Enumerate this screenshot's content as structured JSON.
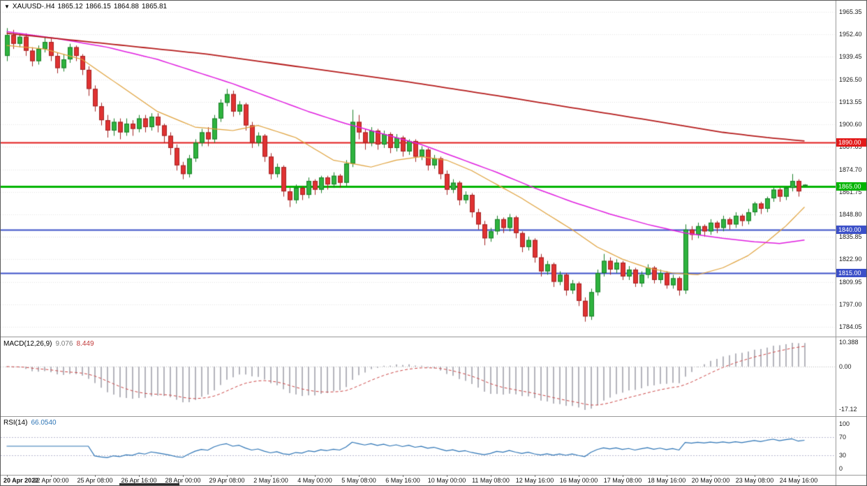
{
  "header": {
    "dropdown": "▼",
    "symbol": "XAUUSD-.H4",
    "open": "1865.12",
    "high": "1866.15",
    "low": "1864.88",
    "close": "1865.81"
  },
  "colors": {
    "background": "#ffffff",
    "grid": "#e3e3e3",
    "panel_border": "#9a9a9a",
    "bull": "#2eb33e",
    "bull_stroke": "#1b7f29",
    "bear": "#e03232",
    "bear_stroke": "#a32424",
    "hline_red": "#e21a1a",
    "hline_green": "#00b400",
    "hline_blue": "#3c50c8",
    "ma_fast": "#e0a23c",
    "ma_mid": "#e01ee0",
    "ma_slow": "#b51c1c",
    "macd_hist": "#b4b4bc",
    "macd_signal": "#cc4444",
    "rsi_line": "#2e75b6",
    "rsi_level": "#b8b8cf"
  },
  "price_axis": {
    "ticks": [
      "1965.35",
      "1952.40",
      "1939.45",
      "1926.50",
      "1913.55",
      "1900.60",
      "1887.65",
      "1874.70",
      "1861.75",
      "1848.80",
      "1835.85",
      "1822.90",
      "1809.95",
      "1797.00",
      "1784.05"
    ],
    "top_value": 1965.35,
    "bottom_value": 1784.05
  },
  "time_axis": {
    "labels": [
      "20 Apr 2022",
      "22 Apr 00:00",
      "25 Apr 08:00",
      "26 Apr 16:00",
      "28 Apr 00:00",
      "29 Apr 08:00",
      "2 May 16:00",
      "4 May 00:00",
      "5 May 08:00",
      "6 May 16:00",
      "10 May 00:00",
      "11 May 08:00",
      "12 May 16:00",
      "16 May 00:00",
      "17 May 08:00",
      "18 May 16:00",
      "20 May 00:00",
      "23 May 08:00",
      "24 May 16:00"
    ],
    "indices": [
      0,
      7,
      14,
      21,
      28,
      35,
      42,
      49,
      56,
      63,
      70,
      77,
      84,
      91,
      98,
      105,
      112,
      119,
      126
    ]
  },
  "chart_data": [
    {
      "type": "candlestick",
      "title": "XAUUSD-.H4",
      "symbol": "XAUUSD-",
      "timeframe": "H4",
      "ylim": [
        1784.05,
        1965.35
      ],
      "hlines": [
        {
          "label": "1890.00",
          "price": 1890.0,
          "color": "#e21a1a",
          "width": 2
        },
        {
          "label": "1865.00",
          "price": 1865.0,
          "color": "#00b400",
          "width": 3
        },
        {
          "label": "1840.00",
          "price": 1840.0,
          "color": "#3c50c8",
          "width": 2
        },
        {
          "label": "1815.00",
          "price": 1815.0,
          "color": "#3c50c8",
          "width": 2
        }
      ],
      "moving_averages": [
        {
          "name": "fast-orange",
          "color": "#e0a23c",
          "width": 1.2,
          "points": [
            [
              0,
              1946
            ],
            [
              6,
              1944
            ],
            [
              12,
              1938
            ],
            [
              18,
              1923
            ],
            [
              24,
              1908
            ],
            [
              30,
              1899
            ],
            [
              36,
              1897
            ],
            [
              40,
              1900
            ],
            [
              46,
              1893
            ],
            [
              52,
              1880
            ],
            [
              58,
              1876
            ],
            [
              62,
              1880
            ],
            [
              66,
              1882
            ],
            [
              70,
              1880
            ],
            [
              74,
              1874
            ],
            [
              78,
              1866
            ],
            [
              82,
              1858
            ],
            [
              86,
              1849
            ],
            [
              90,
              1840
            ],
            [
              94,
              1830
            ],
            [
              98,
              1823
            ],
            [
              102,
              1818
            ],
            [
              106,
              1815
            ],
            [
              110,
              1814
            ],
            [
              114,
              1818
            ],
            [
              118,
              1825
            ],
            [
              121,
              1833
            ],
            [
              124,
              1842
            ],
            [
              127,
              1853
            ]
          ]
        },
        {
          "name": "mid-magenta",
          "color": "#e01ee0",
          "width": 1.5,
          "points": [
            [
              0,
              1954
            ],
            [
              8,
              1950
            ],
            [
              16,
              1945
            ],
            [
              24,
              1938
            ],
            [
              30,
              1931
            ],
            [
              36,
              1924
            ],
            [
              42,
              1916
            ],
            [
              48,
              1908
            ],
            [
              54,
              1901
            ],
            [
              60,
              1895
            ],
            [
              66,
              1889
            ],
            [
              72,
              1881
            ],
            [
              78,
              1873
            ],
            [
              84,
              1864
            ],
            [
              90,
              1856
            ],
            [
              96,
              1849
            ],
            [
              102,
              1843
            ],
            [
              108,
              1838
            ],
            [
              114,
              1835
            ],
            [
              119,
              1833
            ],
            [
              123,
              1832
            ],
            [
              127,
              1834
            ]
          ]
        },
        {
          "name": "slow-darkred",
          "color": "#b51c1c",
          "width": 1.8,
          "points": [
            [
              0,
              1953
            ],
            [
              16,
              1947
            ],
            [
              32,
              1941
            ],
            [
              48,
              1933
            ],
            [
              64,
              1925
            ],
            [
              80,
              1916
            ],
            [
              92,
              1909
            ],
            [
              104,
              1902
            ],
            [
              114,
              1896
            ],
            [
              121,
              1893
            ],
            [
              127,
              1891
            ]
          ]
        }
      ],
      "ohlc": [
        [
          1940,
          1956,
          1937,
          1952
        ],
        [
          1952,
          1955,
          1944,
          1947
        ],
        [
          1947,
          1953,
          1945,
          1951
        ],
        [
          1951,
          1953,
          1940,
          1943
        ],
        [
          1943,
          1945,
          1934,
          1937
        ],
        [
          1937,
          1946,
          1935,
          1944
        ],
        [
          1944,
          1951,
          1942,
          1948
        ],
        [
          1948,
          1950,
          1937,
          1940
        ],
        [
          1940,
          1942,
          1930,
          1933
        ],
        [
          1933,
          1941,
          1931,
          1938
        ],
        [
          1938,
          1947,
          1936,
          1945
        ],
        [
          1945,
          1946,
          1937,
          1940
        ],
        [
          1940,
          1941,
          1929,
          1932
        ],
        [
          1932,
          1934,
          1917,
          1921
        ],
        [
          1921,
          1923,
          1908,
          1911
        ],
        [
          1911,
          1913,
          1900,
          1903
        ],
        [
          1903,
          1906,
          1893,
          1897
        ],
        [
          1897,
          1904,
          1894,
          1902
        ],
        [
          1902,
          1904,
          1892,
          1896
        ],
        [
          1896,
          1904,
          1894,
          1901
        ],
        [
          1901,
          1903,
          1894,
          1898
        ],
        [
          1898,
          1906,
          1896,
          1904
        ],
        [
          1904,
          1906,
          1896,
          1899
        ],
        [
          1899,
          1907,
          1897,
          1905
        ],
        [
          1905,
          1907,
          1896,
          1900
        ],
        [
          1900,
          1901,
          1890,
          1894
        ],
        [
          1894,
          1896,
          1883,
          1887
        ],
        [
          1887,
          1889,
          1874,
          1877
        ],
        [
          1877,
          1879,
          1869,
          1872
        ],
        [
          1872,
          1883,
          1870,
          1881
        ],
        [
          1881,
          1892,
          1879,
          1890
        ],
        [
          1890,
          1898,
          1888,
          1896
        ],
        [
          1896,
          1899,
          1888,
          1892
        ],
        [
          1892,
          1906,
          1890,
          1904
        ],
        [
          1904,
          1915,
          1902,
          1913
        ],
        [
          1913,
          1921,
          1911,
          1918
        ],
        [
          1918,
          1920,
          1905,
          1908
        ],
        [
          1908,
          1914,
          1906,
          1912
        ],
        [
          1912,
          1913,
          1897,
          1900
        ],
        [
          1900,
          1902,
          1887,
          1890
        ],
        [
          1890,
          1896,
          1888,
          1894
        ],
        [
          1894,
          1895,
          1879,
          1882
        ],
        [
          1882,
          1884,
          1869,
          1872
        ],
        [
          1872,
          1878,
          1870,
          1876
        ],
        [
          1876,
          1877,
          1859,
          1862
        ],
        [
          1862,
          1864,
          1853,
          1857
        ],
        [
          1857,
          1866,
          1855,
          1864
        ],
        [
          1864,
          1865,
          1857,
          1860
        ],
        [
          1860,
          1870,
          1858,
          1868
        ],
        [
          1868,
          1869,
          1860,
          1863
        ],
        [
          1863,
          1871,
          1861,
          1870
        ],
        [
          1870,
          1871,
          1863,
          1866
        ],
        [
          1866,
          1873,
          1864,
          1871
        ],
        [
          1871,
          1872,
          1864,
          1867
        ],
        [
          1867,
          1880,
          1865,
          1878
        ],
        [
          1878,
          1909,
          1876,
          1902
        ],
        [
          1902,
          1906,
          1892,
          1896
        ],
        [
          1896,
          1898,
          1886,
          1890
        ],
        [
          1890,
          1899,
          1888,
          1897
        ],
        [
          1897,
          1898,
          1886,
          1889
        ],
        [
          1889,
          1897,
          1887,
          1895
        ],
        [
          1895,
          1896,
          1884,
          1887
        ],
        [
          1887,
          1895,
          1885,
          1893
        ],
        [
          1893,
          1894,
          1882,
          1885
        ],
        [
          1885,
          1892,
          1883,
          1891
        ],
        [
          1891,
          1892,
          1879,
          1882
        ],
        [
          1882,
          1888,
          1880,
          1886
        ],
        [
          1886,
          1887,
          1874,
          1877
        ],
        [
          1877,
          1883,
          1875,
          1881
        ],
        [
          1881,
          1882,
          1869,
          1872
        ],
        [
          1872,
          1874,
          1860,
          1863
        ],
        [
          1863,
          1869,
          1861,
          1867
        ],
        [
          1867,
          1868,
          1854,
          1857
        ],
        [
          1857,
          1862,
          1855,
          1860
        ],
        [
          1860,
          1861,
          1847,
          1850
        ],
        [
          1850,
          1852,
          1840,
          1843
        ],
        [
          1843,
          1845,
          1831,
          1835
        ],
        [
          1835,
          1841,
          1833,
          1839
        ],
        [
          1839,
          1848,
          1837,
          1846
        ],
        [
          1846,
          1847,
          1838,
          1841
        ],
        [
          1841,
          1849,
          1839,
          1847
        ],
        [
          1847,
          1848,
          1835,
          1838
        ],
        [
          1838,
          1839,
          1827,
          1830
        ],
        [
          1830,
          1836,
          1828,
          1834
        ],
        [
          1834,
          1835,
          1821,
          1824
        ],
        [
          1824,
          1826,
          1813,
          1816
        ],
        [
          1816,
          1822,
          1814,
          1820
        ],
        [
          1820,
          1821,
          1807,
          1810
        ],
        [
          1810,
          1816,
          1808,
          1814
        ],
        [
          1814,
          1815,
          1802,
          1805
        ],
        [
          1805,
          1811,
          1803,
          1809
        ],
        [
          1809,
          1810,
          1796,
          1799
        ],
        [
          1799,
          1801,
          1787,
          1790
        ],
        [
          1790,
          1806,
          1788,
          1804
        ],
        [
          1804,
          1817,
          1802,
          1815
        ],
        [
          1815,
          1826,
          1813,
          1822
        ],
        [
          1822,
          1824,
          1814,
          1817
        ],
        [
          1817,
          1823,
          1815,
          1821
        ],
        [
          1821,
          1822,
          1811,
          1813
        ],
        [
          1813,
          1819,
          1811,
          1817
        ],
        [
          1817,
          1818,
          1807,
          1809
        ],
        [
          1809,
          1816,
          1807,
          1814
        ],
        [
          1814,
          1820,
          1812,
          1818
        ],
        [
          1818,
          1819,
          1809,
          1811
        ],
        [
          1811,
          1817,
          1809,
          1815
        ],
        [
          1815,
          1816,
          1806,
          1808
        ],
        [
          1808,
          1814,
          1806,
          1812
        ],
        [
          1812,
          1813,
          1802,
          1805
        ],
        [
          1805,
          1843,
          1803,
          1840
        ],
        [
          1840,
          1842,
          1834,
          1837
        ],
        [
          1837,
          1844,
          1835,
          1842
        ],
        [
          1842,
          1843,
          1836,
          1839
        ],
        [
          1839,
          1846,
          1837,
          1844
        ],
        [
          1844,
          1845,
          1838,
          1841
        ],
        [
          1841,
          1848,
          1839,
          1846
        ],
        [
          1846,
          1847,
          1840,
          1843
        ],
        [
          1843,
          1850,
          1841,
          1848
        ],
        [
          1848,
          1849,
          1842,
          1845
        ],
        [
          1845,
          1852,
          1843,
          1850
        ],
        [
          1850,
          1856,
          1848,
          1855
        ],
        [
          1855,
          1856,
          1849,
          1852
        ],
        [
          1852,
          1859,
          1850,
          1858
        ],
        [
          1858,
          1864,
          1856,
          1863
        ],
        [
          1863,
          1864,
          1856,
          1859
        ],
        [
          1859,
          1865,
          1857,
          1864
        ],
        [
          1864,
          1872,
          1862,
          1868
        ],
        [
          1868,
          1869,
          1859,
          1862
        ],
        [
          1865.12,
          1866.15,
          1864.88,
          1865.81
        ]
      ]
    },
    {
      "type": "bar",
      "name": "MACD",
      "label": "MACD(12,26,9)",
      "params": [
        12,
        26,
        9
      ],
      "current_main": "9.076",
      "current_signal": "8.449",
      "axis_labels": {
        "max": "10.388",
        "zero": "0.00",
        "min": "-17.12"
      }
    },
    {
      "type": "line",
      "name": "RSI",
      "label": "RSI(14)",
      "period": 14,
      "current_value": "66.0540",
      "levels": [
        70,
        30
      ],
      "axis_labels": [
        "100",
        "70",
        "30",
        "0"
      ]
    }
  ]
}
